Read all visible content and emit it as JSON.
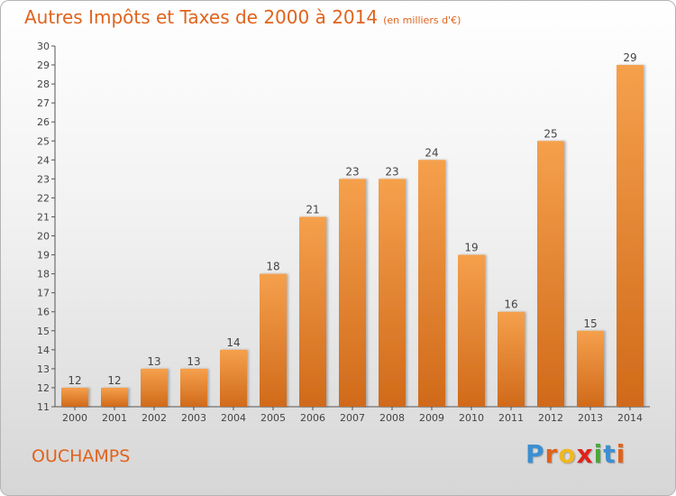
{
  "header": {
    "title": "Autres Impôts et Taxes de 2000 à 2014",
    "unit": "(en milliers d'€)"
  },
  "footer": {
    "commune": "OUCHAMPS",
    "logo": [
      "P",
      "r",
      "o",
      "x",
      "i",
      "t",
      "i"
    ],
    "logo_colors": [
      "#3b8fd1",
      "#e0631c",
      "#f0b820",
      "#e0221c",
      "#4aa83a",
      "#3b8fd1",
      "#e0631c"
    ]
  },
  "chart_data": {
    "type": "bar",
    "title": "Autres Impôts et Taxes de 2000 à 2014",
    "categories": [
      "2000",
      "2001",
      "2002",
      "2003",
      "2004",
      "2005",
      "2006",
      "2007",
      "2008",
      "2009",
      "2010",
      "2011",
      "2012",
      "2013",
      "2014"
    ],
    "values": [
      12,
      12,
      13,
      13,
      14,
      18,
      21,
      23,
      23,
      24,
      19,
      16,
      25,
      15,
      29
    ],
    "ylim": [
      11,
      30
    ],
    "yticks": [
      11,
      12,
      13,
      14,
      15,
      16,
      17,
      18,
      19,
      20,
      21,
      22,
      23,
      24,
      25,
      26,
      27,
      28,
      29,
      30
    ],
    "grid": false,
    "bar_color": "#f39c45",
    "bar_color_dark": "#d06a1a"
  }
}
